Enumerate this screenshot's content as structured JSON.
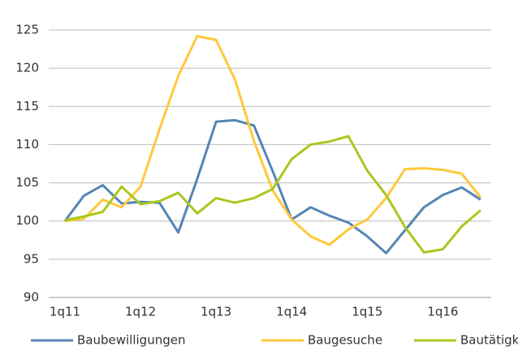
{
  "chart_data": {
    "type": "line",
    "categories": [
      "1q11",
      null,
      null,
      null,
      "1q12",
      null,
      null,
      null,
      "1q13",
      null,
      null,
      null,
      "1q14",
      null,
      null,
      null,
      "1q15",
      null,
      null,
      null,
      "1q16",
      null,
      null
    ],
    "series": [
      {
        "name": "Baubewilligungen",
        "color": "#5585b5",
        "values": [
          100,
          103.3,
          104.7,
          102.3,
          102.5,
          102.4,
          98.5,
          105.5,
          113,
          113.2,
          112.5,
          106.5,
          100.2,
          101.8,
          100.7,
          99.8,
          98,
          95.8,
          98.8,
          101.8,
          103.4,
          104.4,
          102.8
        ]
      },
      {
        "name": "Baugesuche",
        "color": "#ffc83c",
        "values": [
          100,
          100.3,
          102.8,
          101.8,
          104.5,
          112,
          119,
          124.2,
          123.7,
          118.5,
          110.5,
          104,
          100.2,
          98,
          96.9,
          98.9,
          100.2,
          103,
          106.8,
          106.9,
          106.7,
          106.2,
          103.1
        ]
      },
      {
        "name": "Bautätigkeit",
        "color": "#a8c81e",
        "values": [
          100.1,
          100.6,
          101.2,
          104.5,
          102.2,
          102.6,
          103.7,
          101,
          103,
          102.4,
          103,
          104.2,
          108.1,
          110,
          110.4,
          111.1,
          106.6,
          103.4,
          99.2,
          95.9,
          96.3,
          99.3,
          101.4
        ]
      }
    ],
    "ylim": [
      90,
      125
    ],
    "yticks": [
      90,
      95,
      100,
      105,
      110,
      115,
      120,
      125
    ],
    "grid": true,
    "legend": "bottom"
  }
}
